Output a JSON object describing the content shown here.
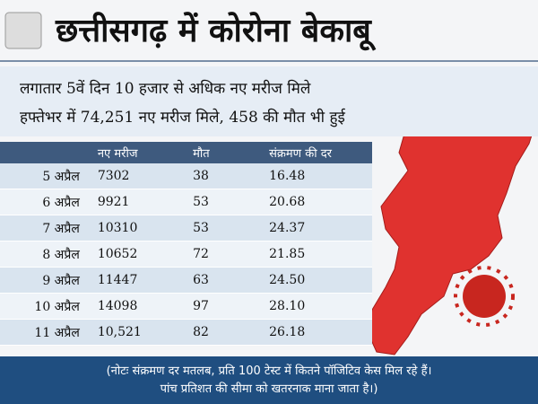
{
  "header": {
    "title": "छत्तीसगढ़ में कोरोना बेकाबू",
    "subtitles": [
      "लगातार 5वें दिन 10 हजार से अधिक नए मरीज मिले",
      "हफ्तेभर में 74,251 नए मरीज मिले, 458 की मौत भी हुई"
    ]
  },
  "table": {
    "columns": [
      null,
      "नए मरीज",
      "मौत",
      "संक्रमण की दर"
    ],
    "rows": [
      [
        "5 अप्रैल",
        "7302",
        "38",
        "16.48"
      ],
      [
        "6 अप्रैल",
        "9921",
        "53",
        "20.68"
      ],
      [
        "7 अप्रैल",
        "10310",
        "53",
        "24.37"
      ],
      [
        "8 अप्रैल",
        "10652",
        "72",
        "21.85"
      ],
      [
        "9 अप्रैल",
        "11447",
        "63",
        "24.50"
      ],
      [
        "10 अप्रैल",
        "14098",
        "97",
        "28.10"
      ],
      [
        "11 अप्रैल",
        "10,521",
        "82",
        "26.18"
      ]
    ]
  },
  "note": [
    "(नोटः संक्रमण दर मतलब, प्रति 100 टेस्ट में कितने पॉजिटिव केस मिल रहे हैं।",
    "पांच प्रतिशत की सीमा को खतरनाक माना जाता है।)"
  ]
}
